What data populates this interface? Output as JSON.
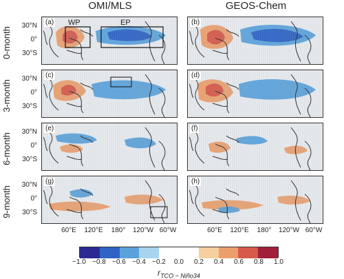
{
  "columns": [
    "OMI/MLS",
    "GEOS-Chem"
  ],
  "rows": [
    "0-month",
    "3-month",
    "6-month",
    "9-month"
  ],
  "panel_labels": [
    "(a)",
    "(b)",
    "(c)",
    "(d)",
    "(e)",
    "(f)",
    "(g)",
    "(h)"
  ],
  "lat_ticks": [
    "30°N",
    "0°",
    "30°S"
  ],
  "lon_ticks": [
    "60°E",
    "120°E",
    "180°",
    "120°W",
    "60°W"
  ],
  "region_labels": {
    "wp": "WP",
    "ep": "EP"
  },
  "colorbar": {
    "ticks": [
      "−1.0",
      "−0.8",
      "−0.6",
      "−0.4",
      "−0.2",
      "0.0",
      "0.2",
      "0.4",
      "0.6",
      "0.8",
      "1.0"
    ],
    "colors": [
      "#2b2a93",
      "#2f63c5",
      "#5aa2dc",
      "#a8d4ef",
      "#ffffff",
      "#ffffff",
      "#f5cf9d",
      "#ec9f6c",
      "#d65a4c",
      "#a0203b"
    ],
    "label_main": "r",
    "label_sub": "TCO − Niño34"
  },
  "colors": {
    "land": "#333333",
    "grid": "#9aa3ad",
    "positive": "#ec9f6c",
    "negative": "#5aa2dc"
  }
}
